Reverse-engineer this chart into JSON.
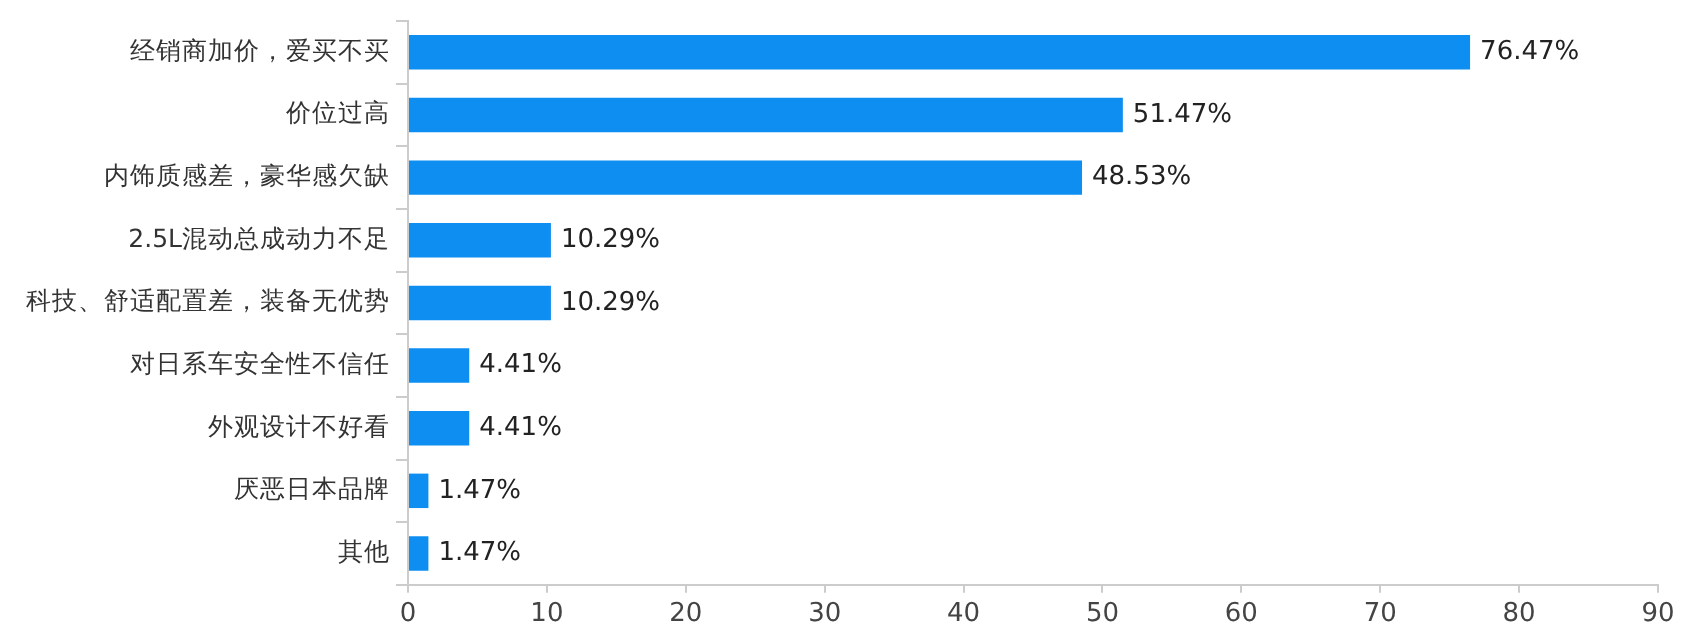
{
  "chart_data": {
    "type": "bar",
    "orientation": "horizontal",
    "categories": [
      "经销商加价，爱买不买",
      "价位过高",
      "内饰质感差，豪华感欠缺",
      "2.5L混动总成动力不足",
      "科技、舒适配置差，装备无优势",
      "对日系车安全性不信任",
      "外观设计不好看",
      "厌恶日本品牌",
      "其他"
    ],
    "values": [
      76.47,
      51.47,
      48.53,
      10.29,
      10.29,
      4.41,
      4.41,
      1.47,
      1.47
    ],
    "value_labels": [
      "76.47%",
      "51.47%",
      "48.53%",
      "10.29%",
      "10.29%",
      "4.41%",
      "4.41%",
      "1.47%",
      "1.47%"
    ],
    "color": "#0e8ef0",
    "xlim": [
      0,
      90
    ],
    "xticks": [
      0,
      10,
      20,
      30,
      40,
      50,
      60,
      70,
      80,
      90
    ],
    "grid": false,
    "legend": false
  }
}
